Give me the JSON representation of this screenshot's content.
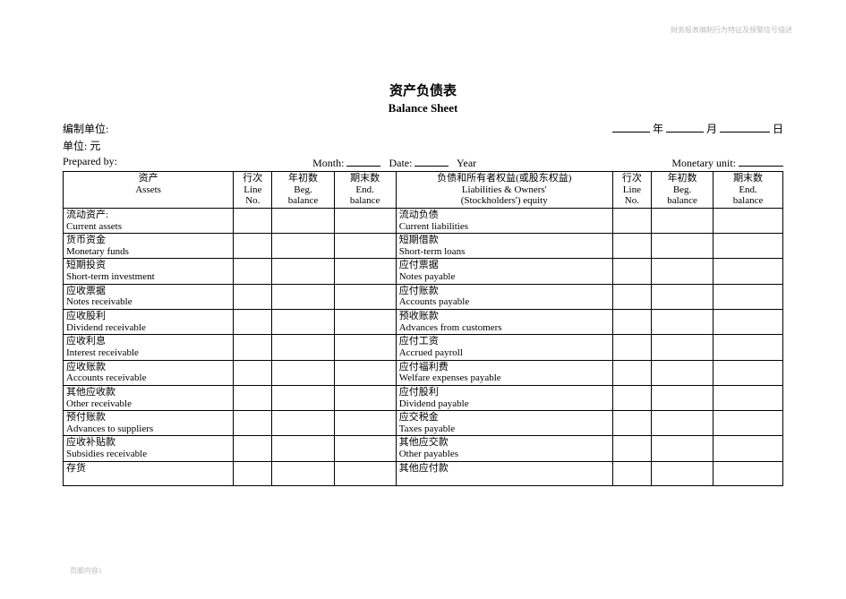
{
  "header_note": "财务报表编制行为特征及预警信号描述",
  "footer_note": "页脚内容1",
  "title_cn": "资产负债表",
  "title_en": "Balance Sheet",
  "meta": {
    "prepared_unit_label": "编制单位:",
    "year_label": "年",
    "month_label": "月",
    "day_label": "日",
    "currency_unit_label": "单位: 元",
    "prepared_by_label": "Prepared by:",
    "month_en_label": "Month:",
    "date_en_label": "Date:",
    "year_en_label": "Year",
    "monetary_unit_label": "Monetary unit:"
  },
  "columns": {
    "assets_cn": "资产",
    "assets_en": "Assets",
    "line_cn": "行次",
    "line_en1": "Line",
    "line_en2": "No.",
    "beg_cn": "年初数",
    "beg_en1": "Beg.",
    "beg_en2": "balance",
    "end_cn": "期末数",
    "end_en1": "End.",
    "end_en2": "balance",
    "liab_cn": "负债和所有者权益(或股东权益)",
    "liab_en1": "Liabilities & Owners'",
    "liab_en2": "(Stockholders') equity"
  },
  "rows": [
    {
      "a_cn": "流动资产:",
      "a_en": "Current assets",
      "l_cn": "流动负债",
      "l_en": "Current liabilities"
    },
    {
      "a_cn": "货币资金",
      "a_en": "Monetary funds",
      "l_cn": "短期借款",
      "l_en": "Short-term loans"
    },
    {
      "a_cn": "短期投资",
      "a_en": "Short-term investment",
      "l_cn": "应付票据",
      "l_en": "Notes payable"
    },
    {
      "a_cn": "应收票据",
      "a_en": "Notes receivable",
      "l_cn": "应付账款",
      "l_en": "Accounts payable"
    },
    {
      "a_cn": "应收股利",
      "a_en": "Dividend receivable",
      "l_cn": "预收账款",
      "l_en": "Advances from customers"
    },
    {
      "a_cn": "应收利息",
      "a_en": "Interest receivable",
      "l_cn": "应付工资",
      "l_en": "Accrued payroll"
    },
    {
      "a_cn": "应收账款",
      "a_en": "Accounts receivable",
      "l_cn": "应付福利费",
      "l_en": "Welfare expenses payable"
    },
    {
      "a_cn": "其他应收款",
      "a_en": "Other receivable",
      "l_cn": "应付股利",
      "l_en": "Dividend payable"
    },
    {
      "a_cn": "预付账款",
      "a_en": "Advances to suppliers",
      "l_cn": "应交税金",
      "l_en": "Taxes payable"
    },
    {
      "a_cn": "应收补贴款",
      "a_en": "Subsidies receivable",
      "l_cn": "其他应交款",
      "l_en": "Other payables"
    },
    {
      "a_cn": "存货",
      "a_en": "",
      "l_cn": "其他应付款",
      "l_en": ""
    }
  ]
}
